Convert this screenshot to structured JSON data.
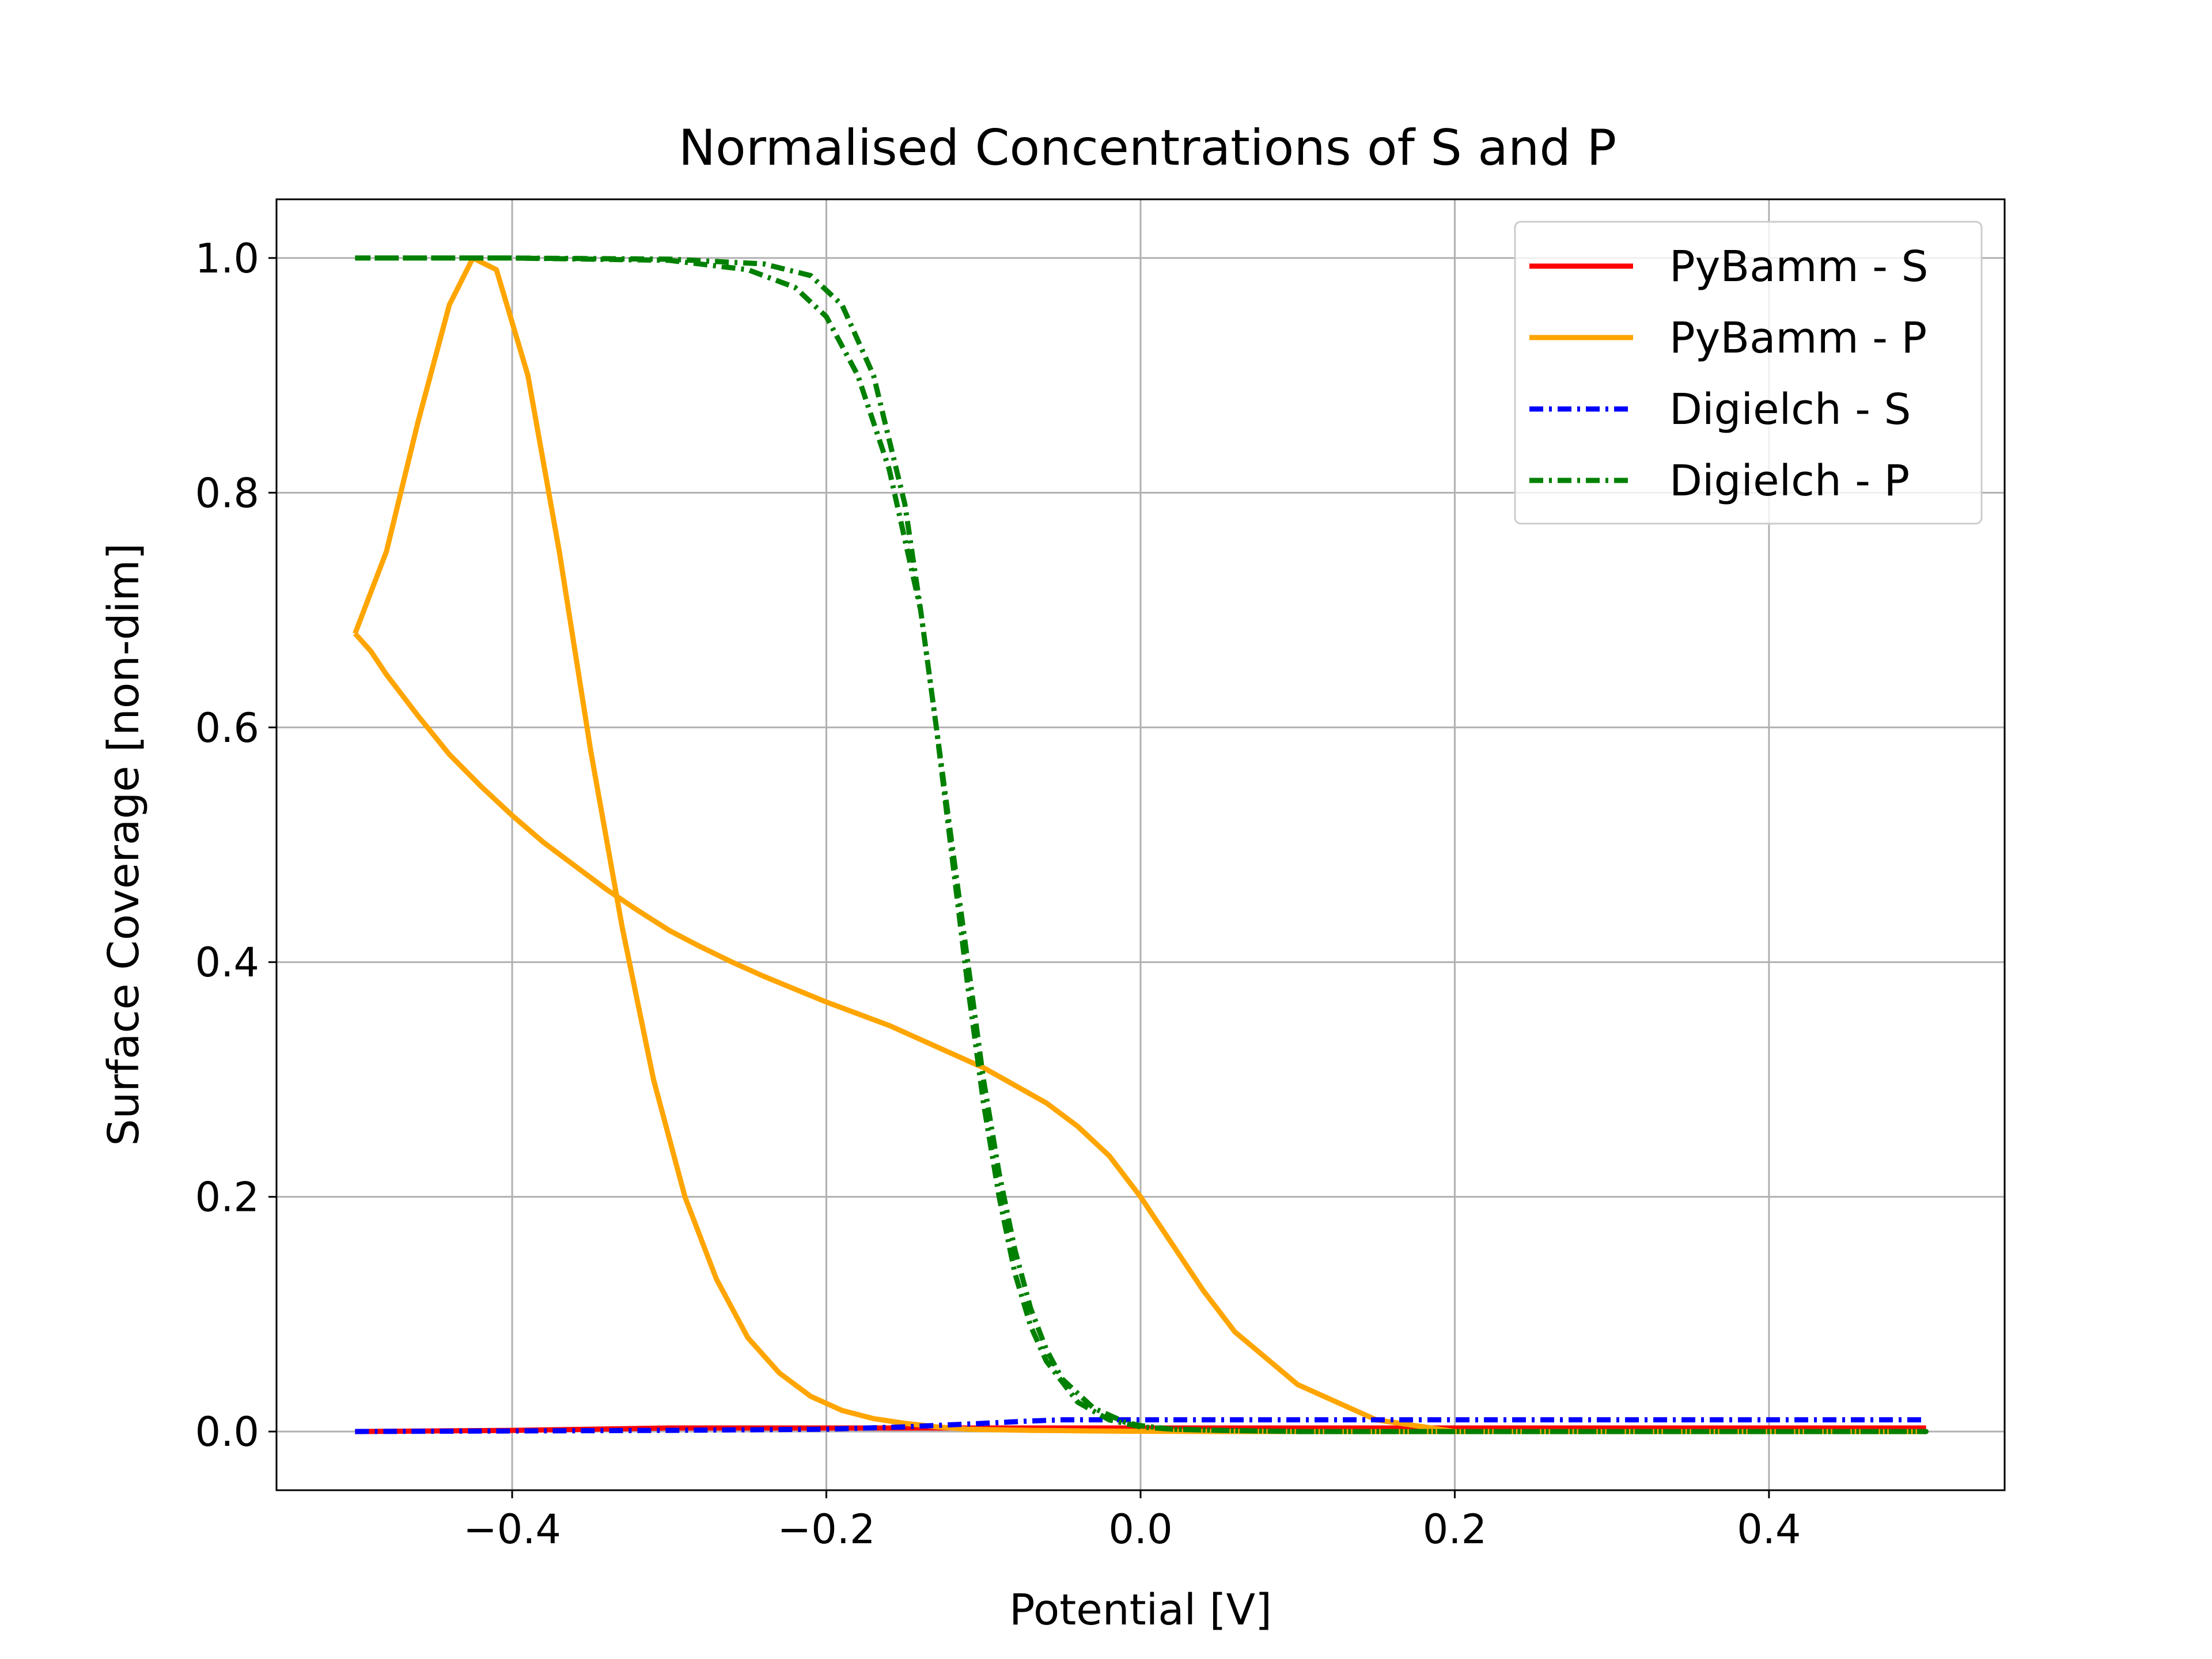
{
  "chart_data": {
    "type": "line",
    "title": "Normalised Concentrations of S and P",
    "xlabel": "Potential [V]",
    "ylabel": "Surface Coverage [non-dim]",
    "xlim": [
      -0.55,
      0.55
    ],
    "ylim": [
      -0.05,
      1.05
    ],
    "xticks": [
      -0.4,
      -0.2,
      0.0,
      0.2,
      0.4
    ],
    "xtick_labels": [
      "−0.4",
      "−0.2",
      "0.0",
      "0.2",
      "0.4"
    ],
    "yticks": [
      0.0,
      0.2,
      0.4,
      0.6,
      0.8,
      1.0
    ],
    "ytick_labels": [
      "0.0",
      "0.2",
      "0.4",
      "0.6",
      "0.8",
      "1.0"
    ],
    "grid": true,
    "legend_position": "top-right",
    "series": [
      {
        "name": "PyBamm - S",
        "color": "#ff0000",
        "style": "solid",
        "x": [
          -0.5,
          -0.45,
          -0.4,
          -0.35,
          -0.3,
          -0.25,
          -0.2,
          -0.15,
          -0.1,
          -0.05,
          0.0,
          0.05,
          0.1,
          0.2,
          0.3,
          0.4,
          0.5
        ],
        "y": [
          0.0,
          0.0005,
          0.001,
          0.002,
          0.003,
          0.003,
          0.003,
          0.003,
          0.003,
          0.003,
          0.003,
          0.003,
          0.003,
          0.003,
          0.003,
          0.003,
          0.003
        ]
      },
      {
        "name": "PyBamm - P",
        "color": "#ffa500",
        "style": "solid",
        "x": [
          -0.5,
          -0.48,
          -0.46,
          -0.44,
          -0.425,
          -0.41,
          -0.39,
          -0.37,
          -0.35,
          -0.33,
          -0.31,
          -0.29,
          -0.27,
          -0.25,
          -0.23,
          -0.21,
          -0.19,
          -0.17,
          -0.15,
          -0.13,
          -0.11,
          -0.09,
          -0.07,
          -0.05,
          -0.03,
          -0.01,
          0.01,
          0.03,
          0.05,
          0.07,
          0.09,
          0.11,
          0.13,
          0.15,
          0.17,
          0.2,
          0.25,
          0.3,
          0.35,
          0.4,
          0.45,
          0.5,
          0.45,
          0.4,
          0.35,
          0.3,
          0.25,
          0.2,
          0.15,
          0.1,
          0.06,
          0.04,
          0.02,
          0.0,
          -0.02,
          -0.04,
          -0.06,
          -0.08,
          -0.1,
          -0.12,
          -0.14,
          -0.16,
          -0.18,
          -0.2,
          -0.22,
          -0.24,
          -0.26,
          -0.28,
          -0.3,
          -0.32,
          -0.34,
          -0.36,
          -0.38,
          -0.4,
          -0.42,
          -0.44,
          -0.46,
          -0.48,
          -0.49,
          -0.5
        ],
        "y": [
          0.68,
          0.75,
          0.86,
          0.96,
          1.0,
          0.99,
          0.9,
          0.75,
          0.58,
          0.43,
          0.3,
          0.2,
          0.13,
          0.08,
          0.05,
          0.03,
          0.018,
          0.011,
          0.007,
          0.004,
          0.002,
          0.0015,
          0.001,
          0.0008,
          0.0005,
          0.0003,
          0.0002,
          0.0001,
          0.0,
          0.0,
          0.0,
          0.0,
          0.0,
          0.0,
          0.0,
          0.0,
          0.0,
          0.0,
          0.0,
          0.0,
          0.0,
          0.0,
          0.0,
          0.0,
          0.0,
          0.0,
          0.0,
          0.0,
          0.01,
          0.04,
          0.085,
          0.12,
          0.16,
          0.2,
          0.235,
          0.26,
          0.28,
          0.295,
          0.31,
          0.322,
          0.334,
          0.346,
          0.356,
          0.366,
          0.377,
          0.388,
          0.4,
          0.413,
          0.427,
          0.444,
          0.462,
          0.482,
          0.502,
          0.525,
          0.55,
          0.577,
          0.61,
          0.645,
          0.665,
          0.68
        ]
      },
      {
        "name": "Digielch - S",
        "color": "#0000ff",
        "style": "dashdot",
        "x": [
          -0.5,
          -0.4,
          -0.3,
          -0.2,
          -0.15,
          -0.1,
          -0.07,
          -0.05,
          0.0,
          0.1,
          0.2,
          0.3,
          0.4,
          0.5
        ],
        "y": [
          0.0,
          0.0005,
          0.001,
          0.002,
          0.004,
          0.007,
          0.009,
          0.01,
          0.01,
          0.01,
          0.01,
          0.01,
          0.01,
          0.01
        ]
      },
      {
        "name": "Digielch - P",
        "color": "#008000",
        "style": "dashdot",
        "x": [
          -0.5,
          -0.4,
          -0.3,
          -0.25,
          -0.22,
          -0.2,
          -0.18,
          -0.16,
          -0.14,
          -0.13,
          -0.12,
          -0.11,
          -0.1,
          -0.09,
          -0.08,
          -0.07,
          -0.06,
          -0.05,
          -0.03,
          -0.01,
          0.0,
          0.02,
          0.05,
          0.1,
          0.2,
          0.3,
          0.4,
          0.5,
          0.4,
          0.3,
          0.2,
          0.1,
          0.05,
          0.02,
          0.0,
          -0.02,
          -0.04,
          -0.06,
          -0.07,
          -0.08,
          -0.09,
          -0.1,
          -0.11,
          -0.12,
          -0.13,
          -0.14,
          -0.15,
          -0.17,
          -0.19,
          -0.21,
          -0.24,
          -0.3,
          -0.4,
          -0.5
        ],
        "y": [
          1.0,
          1.0,
          0.998,
          0.99,
          0.975,
          0.95,
          0.9,
          0.82,
          0.7,
          0.6,
          0.5,
          0.4,
          0.3,
          0.22,
          0.155,
          0.105,
          0.07,
          0.045,
          0.02,
          0.008,
          0.005,
          0.002,
          0.001,
          0.0,
          0.0,
          0.0,
          0.0,
          0.0,
          0.0,
          0.0,
          0.0,
          0.0,
          0.001,
          0.002,
          0.004,
          0.01,
          0.025,
          0.06,
          0.09,
          0.135,
          0.2,
          0.28,
          0.38,
          0.49,
          0.6,
          0.7,
          0.79,
          0.9,
          0.96,
          0.985,
          0.995,
          0.999,
          1.0,
          1.0
        ]
      }
    ]
  }
}
